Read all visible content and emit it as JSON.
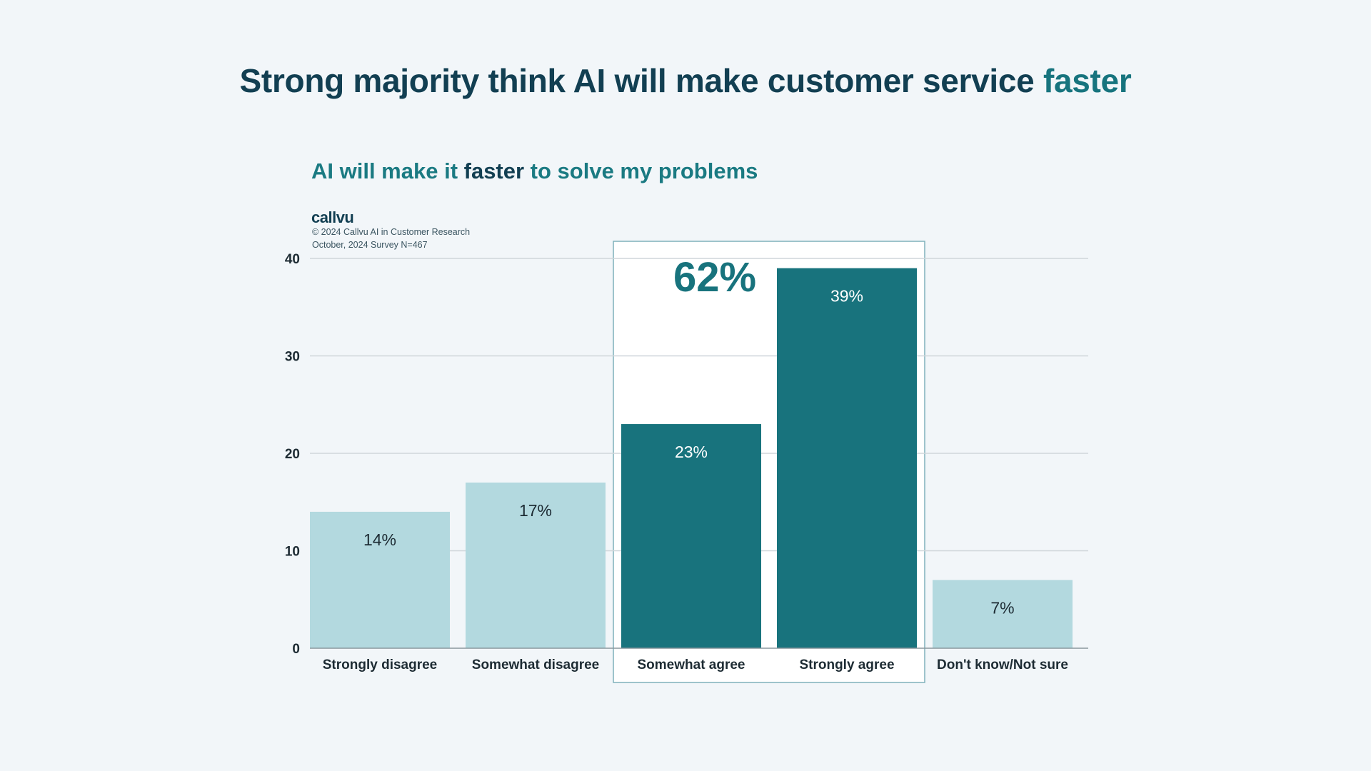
{
  "header": {
    "title_main": "Strong majority think AI will make customer service ",
    "title_accent": "faster"
  },
  "subtitle": {
    "part1": "AI will make it ",
    "part2": "faster",
    "part3": " to solve my problems"
  },
  "brand": {
    "name": "callvu",
    "source_line1": "© 2024 Callvu AI in Customer Research",
    "source_line2": "October, 2024 Survey N=467"
  },
  "colors": {
    "light_bar": "#b3d9df",
    "dark_bar": "#18737d",
    "highlight_border": "#7fb1bb",
    "grid": "#cfd6da",
    "highlight_text": "#18737d"
  },
  "chart_data": {
    "type": "bar",
    "title": "AI will make it faster to solve my problems",
    "categories": [
      "Strongly disagree",
      "Somewhat disagree",
      "Somewhat agree",
      "Strongly agree",
      "Don't know/Not sure"
    ],
    "values": [
      14,
      17,
      23,
      39,
      7
    ],
    "data_labels": [
      "14%",
      "17%",
      "23%",
      "39%",
      "7%"
    ],
    "highlighted": [
      false,
      false,
      true,
      true,
      false
    ],
    "y_ticks": [
      0,
      10,
      20,
      30,
      40
    ],
    "ylim": [
      0,
      40
    ],
    "grid": true,
    "xlabel": "",
    "ylabel": "",
    "annotation": "62%"
  }
}
